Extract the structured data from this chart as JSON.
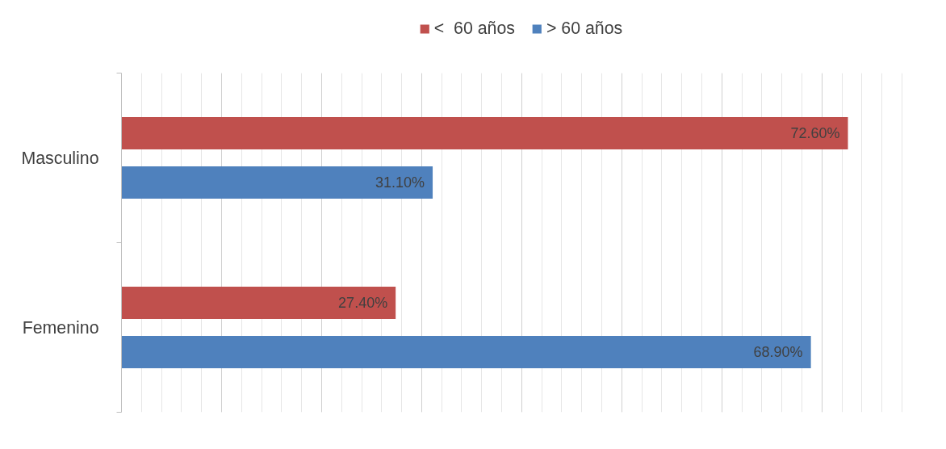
{
  "chart_data": {
    "type": "bar",
    "orientation": "horizontal",
    "categories": [
      "Masculino",
      "Femenino"
    ],
    "series": [
      {
        "name": "<  60 años",
        "color": "#c0504d",
        "values": [
          72.6,
          27.4
        ],
        "value_labels": [
          "72.60%",
          "27.40%"
        ]
      },
      {
        "name": "> 60 años",
        "color": "#4f81bd",
        "values": [
          31.1,
          68.9
        ],
        "value_labels": [
          "31.10%",
          "68.90%"
        ]
      }
    ],
    "tick_labels": "y",
    "grid": "x",
    "legend": "top"
  }
}
